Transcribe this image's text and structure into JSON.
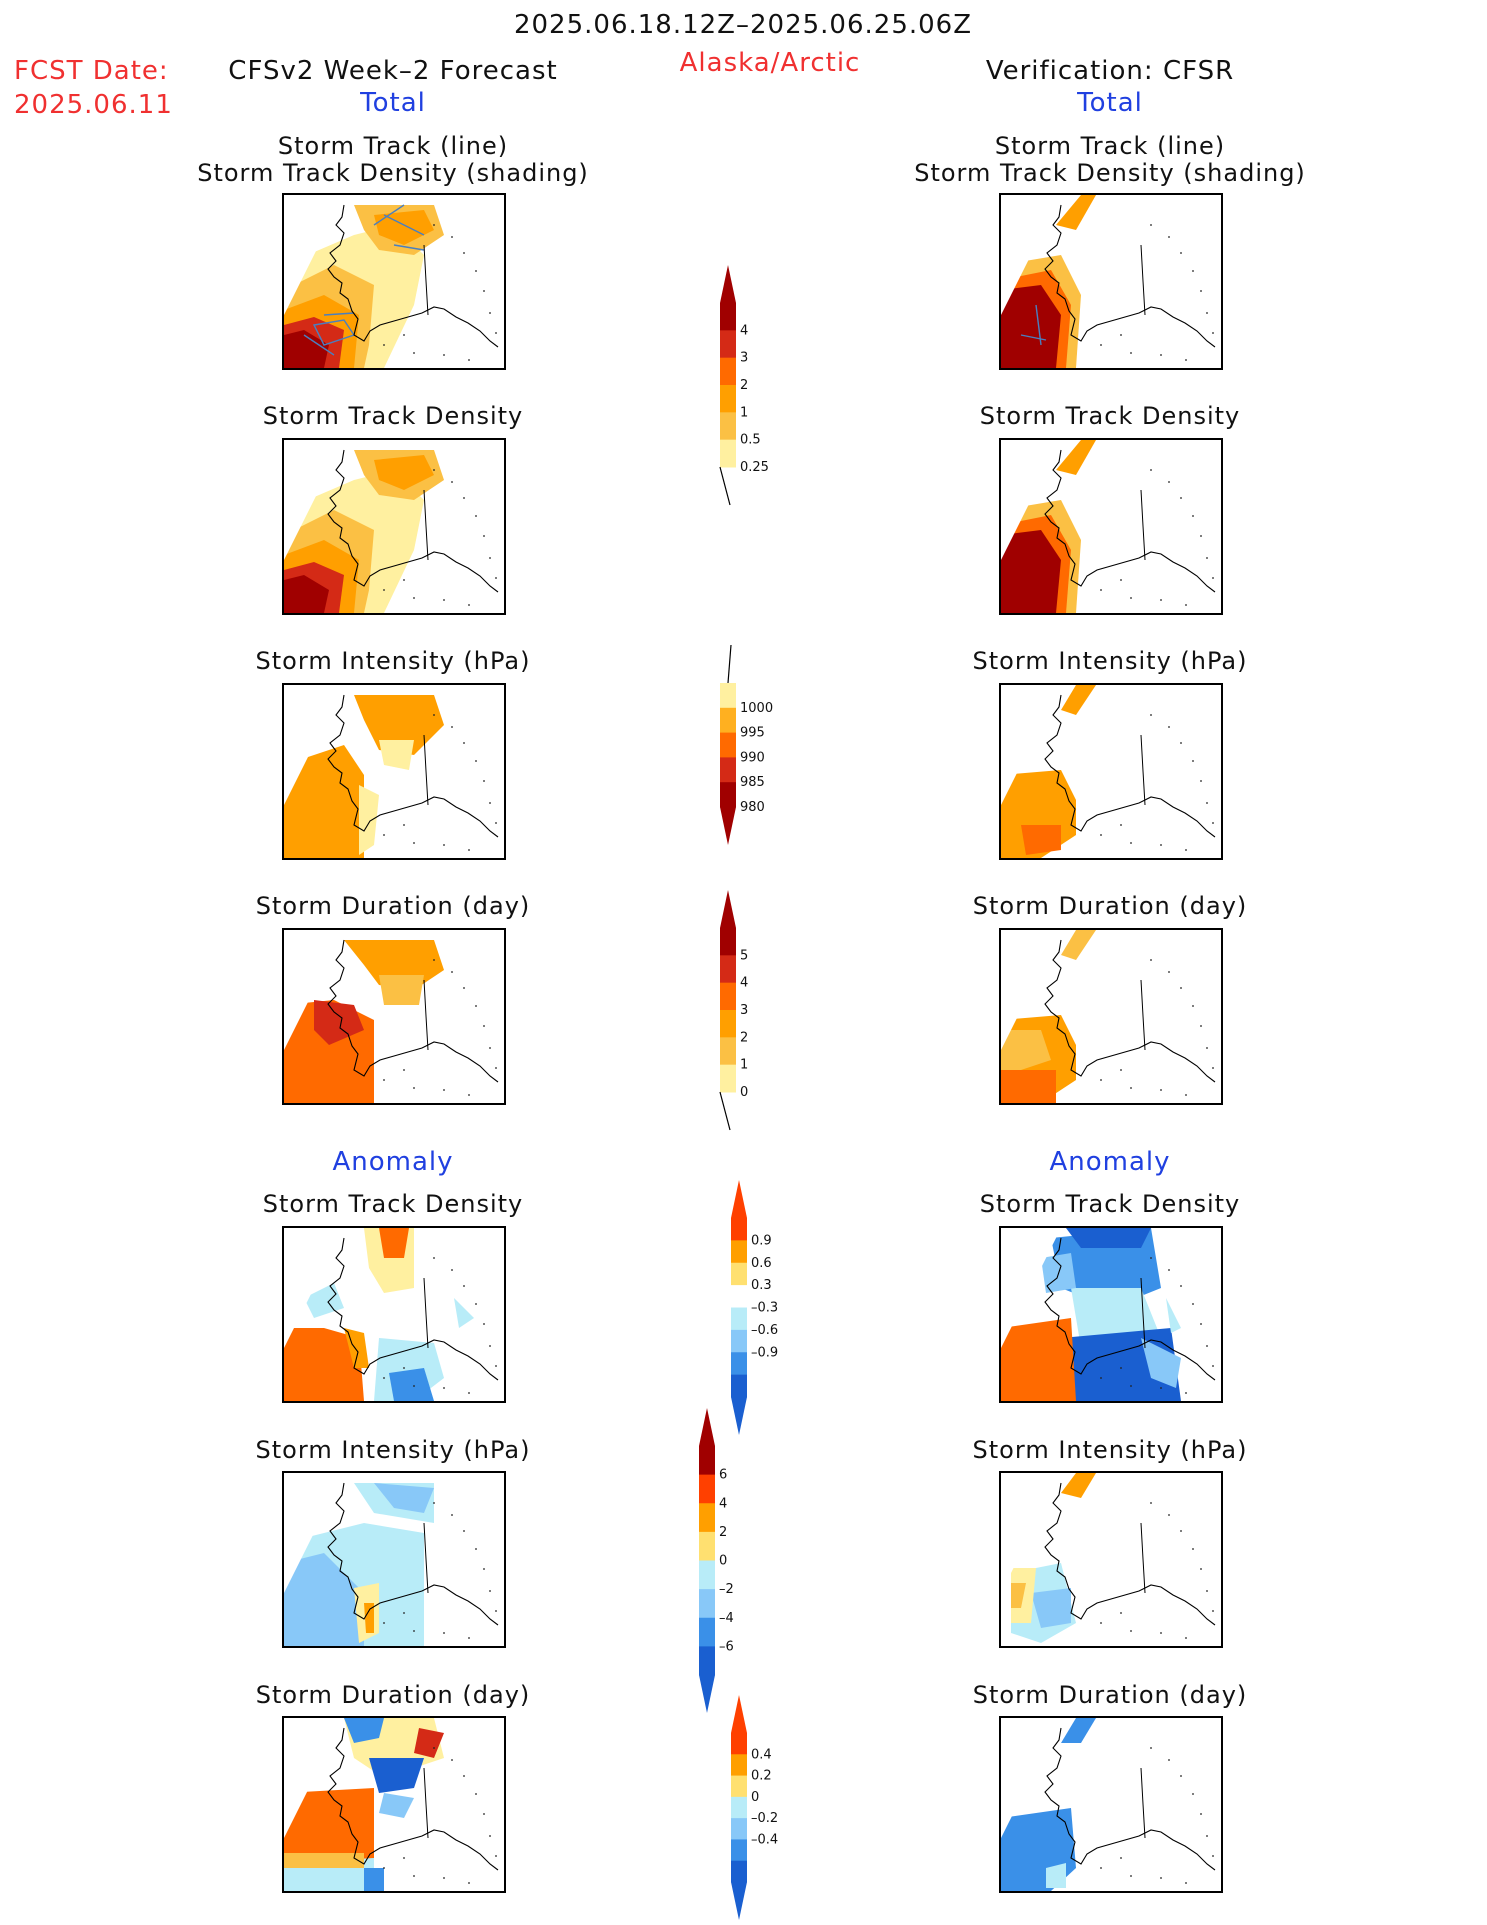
{
  "header": {
    "date_range": "2025.06.18.12Z–2025.06.25.06Z",
    "region": "Alaska/Arctic",
    "fcst_label": "FCST Date:",
    "fcst_date": "2025.06.11",
    "left_model": "CFSv2 Week–2 Forecast",
    "right_model": "Verification: CFSR",
    "total_left": "Total",
    "total_right": "Total",
    "anomaly_left": "Anomaly",
    "anomaly_right": "Anomaly"
  },
  "panels": {
    "track_title_1": "Storm Track (line)",
    "track_title_2": "Storm Track Density (shading)",
    "density": "Storm Track Density",
    "intensity": "Storm Intensity (hPa)",
    "duration": "Storm Duration (day)"
  },
  "colorbars": {
    "density_total": {
      "ticks": [
        "4",
        "3",
        "2",
        "1",
        "0.5",
        "0.25"
      ],
      "colors": [
        "#a00000",
        "#d42a16",
        "#ff6a00",
        "#ff9f00",
        "#fbc044",
        "#fff0a0"
      ]
    },
    "intensity_total": {
      "ticks": [
        "1000",
        "995",
        "990",
        "985",
        "980"
      ],
      "colors": [
        "#fff0a0",
        "#ffb020",
        "#ff6a00",
        "#d42a16",
        "#a00000"
      ]
    },
    "duration_total": {
      "ticks": [
        "5",
        "4",
        "3",
        "2",
        "1",
        "0"
      ],
      "colors": [
        "#a00000",
        "#d42a16",
        "#ff6a00",
        "#ff9f00",
        "#fbc044",
        "#fff0a0"
      ]
    },
    "density_anomaly": {
      "ticks": [
        "0.9",
        "0.6",
        "0.3",
        "–0.3",
        "–0.6",
        "–0.9"
      ],
      "colors": [
        "#ff4000",
        "#ff9f00",
        "#ffe070",
        "#ffffff",
        "#b8ecf8",
        "#88c8f8",
        "#3a90e8",
        "#1a5fd0"
      ]
    },
    "intensity_anomaly": {
      "ticks": [
        "6",
        "4",
        "2",
        "0",
        "–2",
        "–4",
        "–6"
      ],
      "colors": [
        "#a00000",
        "#ff4000",
        "#ff9f00",
        "#ffe070",
        "#b8ecf8",
        "#88c8f8",
        "#3a90e8",
        "#1a5fd0"
      ]
    },
    "duration_anomaly": {
      "ticks": [
        "0.4",
        "0.2",
        "0",
        "–0.2",
        "–0.4"
      ],
      "colors": [
        "#ff4000",
        "#ff9f00",
        "#ffe070",
        "#b8ecf8",
        "#88c8f8",
        "#3a90e8",
        "#1a5fd0"
      ]
    }
  },
  "palette": {
    "dark_red": "#a00000",
    "red": "#d42a16",
    "orange_red": "#ff6a00",
    "orange": "#ff9f00",
    "light_orange": "#fbc044",
    "pale_yellow": "#fff0a0",
    "light_blue": "#b8ecf8",
    "mid_blue": "#88c8f8",
    "blue": "#3a90e8",
    "dark_blue": "#1a5fd0",
    "track_line": "#4a7fc0"
  }
}
